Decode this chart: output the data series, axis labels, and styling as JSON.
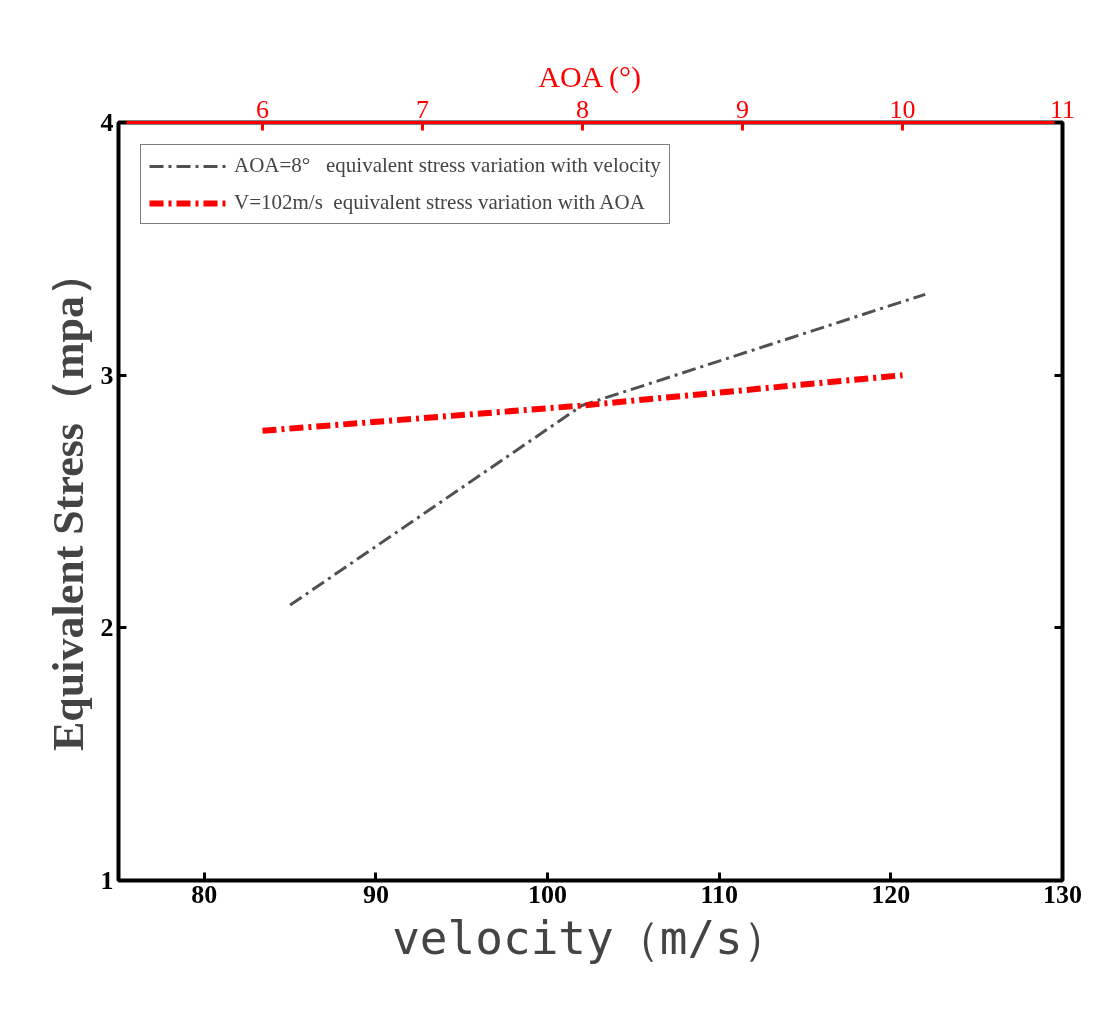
{
  "chart_data": {
    "type": "line",
    "xlabel": "velocity（m/s）",
    "ylabel": "Equivalent Stress（mpa）",
    "x2label": "AOA (°)",
    "xlim": [
      75,
      130
    ],
    "xticks": [
      80,
      90,
      100,
      110,
      120,
      130
    ],
    "x2lim": [
      5.1,
      11
    ],
    "x2ticks": [
      6,
      7,
      8,
      9,
      10,
      11
    ],
    "ylim": [
      1,
      4
    ],
    "yticks": [
      1,
      2,
      3,
      4
    ],
    "grid": false,
    "legend": "top left",
    "marker": "none",
    "series": [
      {
        "name": "AOA=8°   equivalent stress variation with velocity",
        "color": "#505050",
        "line_style": "dashdot",
        "x": [
          85,
          102,
          122
        ],
        "values": [
          2.09,
          2.88,
          3.32
        ]
      },
      {
        "name": "V=102m/s  equivalent stress variation with AOA",
        "color": "#ff0000",
        "line_style": "dashdot",
        "axis": "x2",
        "x": [
          6,
          8,
          10
        ],
        "values": [
          2.78,
          2.88,
          3.0
        ]
      }
    ]
  }
}
